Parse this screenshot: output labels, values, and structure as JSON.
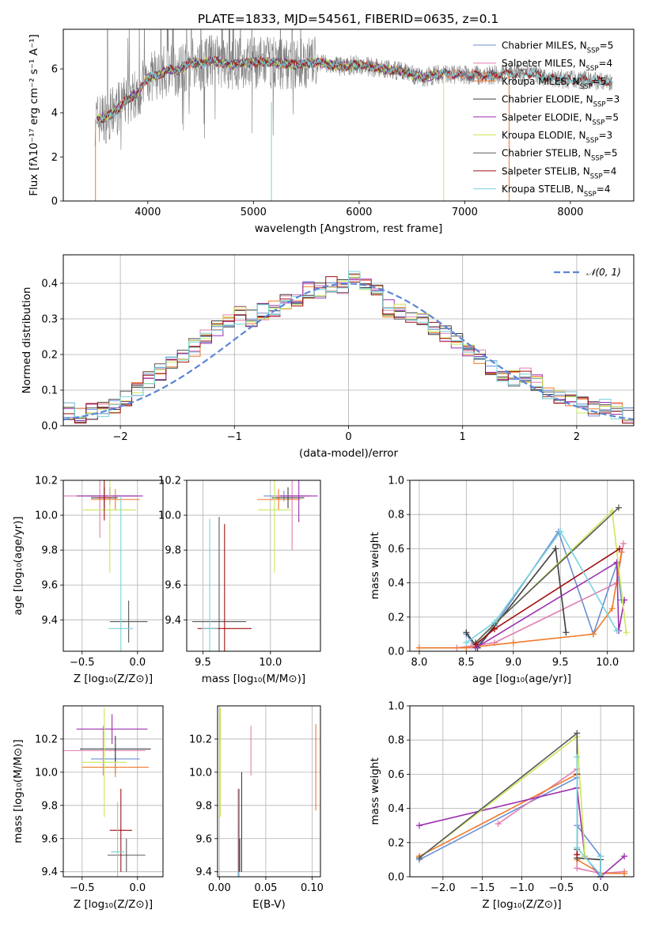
{
  "figure": {
    "title": "PLATE=1833, MJD=54561, FIBERID=0635, z=0.1"
  },
  "colors": {
    "Chabrier MILES": "#6a8fd4",
    "Salpeter MILES": "#e07fb1",
    "Kroupa MILES": "#f07a2a",
    "Chabrier ELODIE": "#3f3f3f",
    "Salpeter ELODIE": "#9b30b0",
    "Kroupa ELODIE": "#c9e85a",
    "Chabrier STELIB": "#5a5a5a",
    "Salpeter STELIB": "#a01010",
    "Kroupa STELIB": "#78d2dc",
    "data": "#808080"
  },
  "chart_data": [
    {
      "id": "spectrum",
      "type": "line",
      "xlabel": "wavelength [Angstrom, rest frame]",
      "ylabel": "Flux [fλ10⁻¹⁷ erg cm⁻² s⁻¹ A⁻¹]",
      "xlim": [
        3200,
        8600
      ],
      "ylim": [
        0,
        7.8
      ],
      "xticks": [
        "4000",
        "5000",
        "6000",
        "7000",
        "8000"
      ],
      "xtick_values": [
        4000,
        5000,
        6000,
        7000,
        8000
      ],
      "yticks": [
        "0",
        "2",
        "4",
        "6"
      ],
      "ytick_values": [
        0,
        2,
        4,
        6
      ],
      "grid": false,
      "legend_position": "top-right",
      "legend": [
        {
          "name": "Chabrier MILES, N",
          "sub": "SSP",
          "suffix": "=5",
          "series": "Chabrier MILES"
        },
        {
          "name": "Salpeter MILES, N",
          "sub": "SSP",
          "suffix": "=4",
          "series": "Salpeter MILES"
        },
        {
          "name": "Kroupa MILES, N",
          "sub": "SSP",
          "suffix": "=5",
          "series": "Kroupa MILES"
        },
        {
          "name": "Chabrier ELODIE, N",
          "sub": "SSP",
          "suffix": "=3",
          "series": "Chabrier ELODIE"
        },
        {
          "name": "Salpeter ELODIE, N",
          "sub": "SSP",
          "suffix": "=5",
          "series": "Salpeter ELODIE"
        },
        {
          "name": "Kroupa ELODIE, N",
          "sub": "SSP",
          "suffix": "=3",
          "series": "Kroupa ELODIE"
        },
        {
          "name": "Chabrier STELIB, N",
          "sub": "SSP",
          "suffix": "=5",
          "series": "Chabrier STELIB"
        },
        {
          "name": "Salpeter STELIB, N",
          "sub": "SSP",
          "suffix": "=4",
          "series": "Salpeter STELIB"
        },
        {
          "name": "Kroupa STELIB, N",
          "sub": "SSP",
          "suffix": "=4",
          "series": "Kroupa STELIB"
        }
      ],
      "continuum": {
        "x": [
          3500,
          3600,
          3700,
          3800,
          3900,
          4000,
          4100,
          4200,
          4300,
          4400,
          4500,
          4600,
          4800,
          5000,
          5200,
          5400,
          5600,
          5800,
          6000,
          6200,
          6400,
          6600,
          6800,
          7000,
          7200,
          7400,
          7600,
          7800,
          8000,
          8200,
          8400
        ],
        "y": [
          3.7,
          3.8,
          4.1,
          4.6,
          4.9,
          5.6,
          5.7,
          6.0,
          5.9,
          6.3,
          6.2,
          6.4,
          6.2,
          6.3,
          6.3,
          6.2,
          6.3,
          6.1,
          6.2,
          6.0,
          5.9,
          5.6,
          5.8,
          5.7,
          5.7,
          5.8,
          5.8,
          5.6,
          5.5,
          5.5,
          5.4
        ]
      }
    },
    {
      "id": "residuals",
      "type": "histogram",
      "xlabel": "(data-model)/error",
      "ylabel": "Normed distribution",
      "xlim": [
        -2.5,
        2.5
      ],
      "ylim": [
        0,
        0.48
      ],
      "xticks": [
        "−2",
        "−1",
        "0",
        "1",
        "2"
      ],
      "xtick_values": [
        -2,
        -1,
        0,
        1,
        2
      ],
      "yticks": [
        "0.0",
        "0.1",
        "0.2",
        "0.3",
        "0.4"
      ],
      "ytick_values": [
        0,
        0.1,
        0.2,
        0.3,
        0.4
      ],
      "grid": true,
      "legend_position": "top-right",
      "legend": [
        {
          "name": "𝒩(0, 1)",
          "style": "dashed",
          "color": "#5b86d6"
        }
      ],
      "bin_width": 0.1,
      "bins_start": -2.5,
      "histogram": [
        0.04,
        0.03,
        0.04,
        0.05,
        0.06,
        0.08,
        0.1,
        0.13,
        0.15,
        0.18,
        0.2,
        0.22,
        0.25,
        0.27,
        0.3,
        0.31,
        0.3,
        0.32,
        0.33,
        0.35,
        0.36,
        0.38,
        0.38,
        0.4,
        0.39,
        0.42,
        0.4,
        0.37,
        0.33,
        0.32,
        0.31,
        0.3,
        0.28,
        0.26,
        0.24,
        0.21,
        0.19,
        0.16,
        0.15,
        0.13,
        0.14,
        0.12,
        0.1,
        0.08,
        0.08,
        0.06,
        0.05,
        0.05,
        0.04,
        0.03
      ]
    },
    {
      "id": "age-vs-Z",
      "type": "errorbar",
      "xlabel": "Z [log₁₀(Z/Z⊙)]",
      "ylabel": "age  [log₁₀(age/yr)]",
      "xlim": [
        -0.67,
        0.23
      ],
      "ylim": [
        9.22,
        10.2
      ],
      "xticks": [
        "−0.5",
        "0.0"
      ],
      "xtick_values": [
        -0.5,
        0
      ],
      "yticks": [
        "9.4",
        "9.6",
        "9.8",
        "10.0",
        "10.2"
      ],
      "ytick_values": [
        9.4,
        9.6,
        9.8,
        10.0,
        10.2
      ],
      "grid": true,
      "points": [
        {
          "series": "Chabrier MILES",
          "x": -0.25,
          "y": 10.11,
          "xerr": 0.2,
          "yerr": 0.03
        },
        {
          "series": "Salpeter MILES",
          "x": -0.34,
          "y": 10.11,
          "xerr": 0.34,
          "yerr": 0.24
        },
        {
          "series": "Kroupa MILES",
          "x": -0.2,
          "y": 10.09,
          "xerr": 0.22,
          "yerr": 0.06
        },
        {
          "series": "Chabrier ELODIE",
          "x": -0.3,
          "y": 10.1,
          "xerr": 0.12,
          "yerr": 0.06
        },
        {
          "series": "Salpeter ELODIE",
          "x": -0.25,
          "y": 10.11,
          "xerr": 0.3,
          "yerr": 0.05
        },
        {
          "series": "Kroupa ELODIE",
          "x": -0.25,
          "y": 10.03,
          "xerr": 0.24,
          "yerr": 0.36
        },
        {
          "series": "Chabrier STELIB",
          "x": -0.08,
          "y": 9.39,
          "xerr": 0.17,
          "yerr": 0.12
        },
        {
          "series": "Salpeter STELIB",
          "x": -0.3,
          "y": 10.1,
          "xerr": 0.06,
          "yerr": 0.13
        },
        {
          "series": "Kroupa STELIB",
          "x": -0.15,
          "y": 9.35,
          "xerr": 0.11,
          "yerr": 0.76
        }
      ]
    },
    {
      "id": "age-vs-mass",
      "type": "errorbar",
      "xlabel": "mass [log₁₀(M/M⊙)]",
      "ylabel": "",
      "xlim": [
        9.38,
        10.37
      ],
      "ylim": [
        9.22,
        10.2
      ],
      "xticks": [
        "9.5",
        "10.0"
      ],
      "xtick_values": [
        9.5,
        10.0
      ],
      "yticks": [
        "9.4",
        "9.6",
        "9.8",
        "10.0",
        "10.2"
      ],
      "ytick_values": [
        9.4,
        9.6,
        9.8,
        10.0,
        10.2
      ],
      "grid": true,
      "points": [
        {
          "series": "Chabrier MILES",
          "x": 10.1,
          "y": 10.11,
          "xerr": 0.15,
          "yerr": 0.03
        },
        {
          "series": "Salpeter MILES",
          "x": 10.16,
          "y": 10.11,
          "xerr": 0.13,
          "yerr": 0.31
        },
        {
          "series": "Kroupa MILES",
          "x": 10.06,
          "y": 10.09,
          "xerr": 0.16,
          "yerr": 0.06
        },
        {
          "series": "Chabrier ELODIE",
          "x": 10.13,
          "y": 10.1,
          "xerr": 0.12,
          "yerr": 0.06
        },
        {
          "series": "Salpeter ELODIE",
          "x": 10.21,
          "y": 10.11,
          "xerr": 0.14,
          "yerr": 0.15
        },
        {
          "series": "Kroupa ELODIE",
          "x": 10.03,
          "y": 10.03,
          "xerr": 0.12,
          "yerr": 0.36
        },
        {
          "series": "Chabrier STELIB",
          "x": 9.62,
          "y": 9.39,
          "xerr": 0.2,
          "yerr": 0.6
        },
        {
          "series": "Salpeter STELIB",
          "x": 9.66,
          "y": 9.35,
          "xerr": 0.2,
          "yerr": 0.6
        },
        {
          "series": "Kroupa STELIB",
          "x": 9.55,
          "y": 9.35,
          "xerr": 0.06,
          "yerr": 0.63
        }
      ]
    },
    {
      "id": "weight-vs-age",
      "type": "line",
      "xlabel": "age  [log₁₀(age/yr)]",
      "ylabel": "mass weight",
      "xlim": [
        7.9,
        10.28
      ],
      "ylim": [
        0,
        1.0
      ],
      "xticks": [
        "8.0",
        "8.5",
        "9.0",
        "9.5",
        "10.0"
      ],
      "xtick_values": [
        8.0,
        8.5,
        9.0,
        9.5,
        10.0
      ],
      "yticks": [
        "0.0",
        "0.2",
        "0.4",
        "0.6",
        "0.8",
        "1.0"
      ],
      "ytick_values": [
        0,
        0.2,
        0.4,
        0.6,
        0.8,
        1.0
      ],
      "grid": true,
      "series": [
        {
          "name": "Chabrier MILES",
          "x": [
            8.5,
            8.6,
            8.8,
            9.48,
            9.85,
            10.1,
            10.15
          ],
          "y": [
            0.1,
            0.02,
            0.15,
            0.7,
            0.1,
            0.51,
            0.3
          ]
        },
        {
          "name": "Salpeter MILES",
          "x": [
            8.4,
            8.55,
            8.8,
            10.1,
            10.17
          ],
          "y": [
            0.02,
            0.03,
            0.05,
            0.4,
            0.63
          ]
        },
        {
          "name": "Kroupa MILES",
          "x": [
            8.0,
            8.5,
            9.0,
            9.85,
            10.05,
            10.15
          ],
          "y": [
            0.02,
            0.02,
            0.05,
            0.1,
            0.25,
            0.58
          ]
        },
        {
          "name": "Chabrier ELODIE",
          "x": [
            8.5,
            8.62,
            9.45,
            9.56
          ],
          "y": [
            0.11,
            0.02,
            0.6,
            0.11
          ]
        },
        {
          "name": "Salpeter ELODIE",
          "x": [
            8.6,
            10.1,
            10.12,
            10.18
          ],
          "y": [
            0.02,
            0.52,
            0.12,
            0.3
          ]
        },
        {
          "name": "Kroupa ELODIE",
          "x": [
            8.6,
            10.05,
            10.2
          ],
          "y": [
            0.05,
            0.82,
            0.11
          ]
        },
        {
          "name": "Chabrier STELIB",
          "x": [
            8.6,
            8.8,
            10.12
          ],
          "y": [
            0.05,
            0.16,
            0.84
          ]
        },
        {
          "name": "Salpeter STELIB",
          "x": [
            8.6,
            8.8,
            10.13
          ],
          "y": [
            0.04,
            0.13,
            0.6
          ]
        },
        {
          "name": "Kroupa STELIB",
          "x": [
            8.5,
            8.8,
            9.5,
            10.1
          ],
          "y": [
            0.05,
            0.17,
            0.7,
            0.12
          ]
        }
      ]
    },
    {
      "id": "mass-vs-Z",
      "type": "errorbar",
      "xlabel": "Z [log₁₀(Z/Z⊙)]",
      "ylabel": "mass [log₁₀(M/M⊙)]",
      "xlim": [
        -0.67,
        0.23
      ],
      "ylim": [
        9.37,
        10.4
      ],
      "xticks": [
        "−0.5",
        "0.0"
      ],
      "xtick_values": [
        -0.5,
        0
      ],
      "yticks": [
        "9.4",
        "9.6",
        "9.8",
        "10.0",
        "10.2"
      ],
      "ytick_values": [
        9.4,
        9.6,
        9.8,
        10.0,
        10.2
      ],
      "grid": true,
      "points": [
        {
          "series": "Chabrier MILES",
          "x": -0.2,
          "y": 10.08,
          "xerr": 0.22,
          "yerr": 0.09
        },
        {
          "series": "Salpeter MILES",
          "x": -0.31,
          "y": 10.13,
          "xerr": 0.38,
          "yerr": 0.15
        },
        {
          "series": "Kroupa MILES",
          "x": -0.2,
          "y": 10.03,
          "xerr": 0.3,
          "yerr": 0.06
        },
        {
          "series": "Chabrier ELODIE",
          "x": -0.2,
          "y": 10.14,
          "xerr": 0.32,
          "yerr": 0.08
        },
        {
          "series": "Salpeter ELODIE",
          "x": -0.23,
          "y": 10.26,
          "xerr": 0.32,
          "yerr": 0.09
        },
        {
          "series": "Kroupa ELODIE",
          "x": -0.3,
          "y": 10.06,
          "xerr": 0.2,
          "yerr": 0.33
        },
        {
          "series": "Chabrier STELIB",
          "x": -0.1,
          "y": 9.5,
          "xerr": 0.17,
          "yerr": 0.1
        },
        {
          "series": "Salpeter STELIB",
          "x": -0.15,
          "y": 9.65,
          "xerr": 0.1,
          "yerr": 0.25
        },
        {
          "series": "Kroupa STELIB",
          "x": -0.18,
          "y": 9.52,
          "xerr": 0.06,
          "yerr": 0.3
        }
      ]
    },
    {
      "id": "mass-vs-ebv",
      "type": "errorbar",
      "xlabel": "E(B-V)",
      "ylabel": "",
      "xlim": [
        -0.002,
        0.109
      ],
      "ylim": [
        9.37,
        10.4
      ],
      "xticks": [
        "0.00",
        "0.05",
        "0.10"
      ],
      "xtick_values": [
        0,
        0.05,
        0.1
      ],
      "yticks": [
        "9.4",
        "9.6",
        "9.8",
        "10.0",
        "10.2"
      ],
      "ytick_values": [
        9.4,
        9.6,
        9.8,
        10.0,
        10.2
      ],
      "grid": true,
      "points": [
        {
          "series": "Chabrier MILES",
          "x": 0.021,
          "y": 9.52,
          "xerr": 0,
          "yerr": 0.15
        },
        {
          "series": "Salpeter MILES",
          "x": 0.034,
          "y": 10.13,
          "xerr": 0,
          "yerr": 0.15
        },
        {
          "series": "Kroupa MILES",
          "x": 0.104,
          "y": 10.03,
          "xerr": 0,
          "yerr": 0.26
        },
        {
          "series": "Chabrier ELODIE",
          "x": 0.024,
          "y": 9.7,
          "xerr": 0,
          "yerr": 0.3
        },
        {
          "series": "Salpeter ELODIE",
          "x": 0.001,
          "y": 10.26,
          "xerr": 0,
          "yerr": 0.09
        },
        {
          "series": "Kroupa ELODIE",
          "x": 0.001,
          "y": 10.06,
          "xerr": 0,
          "yerr": 0.33
        },
        {
          "series": "Chabrier STELIB",
          "x": 0.022,
          "y": 9.5,
          "xerr": 0,
          "yerr": 0.1
        },
        {
          "series": "Salpeter STELIB",
          "x": 0.021,
          "y": 9.65,
          "xerr": 0,
          "yerr": 0.25
        },
        {
          "series": "Kroupa STELIB",
          "x": 0.02,
          "y": 9.55,
          "xerr": 0,
          "yerr": 0.35
        }
      ]
    },
    {
      "id": "weight-vs-Z",
      "type": "line",
      "xlabel": "Z [log₁₀(Z/Z⊙)]",
      "ylabel": "mass weight",
      "xlim": [
        -2.42,
        0.42
      ],
      "ylim": [
        0,
        1.0
      ],
      "xticks": [
        "−2.0",
        "−1.5",
        "−1.0",
        "−0.5",
        "0.0"
      ],
      "xtick_values": [
        -2.0,
        -1.5,
        -1.0,
        -0.5,
        0
      ],
      "yticks": [
        "0.0",
        "0.2",
        "0.4",
        "0.6",
        "0.8",
        "1.0"
      ],
      "ytick_values": [
        0,
        0.2,
        0.4,
        0.6,
        0.8,
        1.0
      ],
      "grid": true,
      "series": [
        {
          "name": "Chabrier MILES",
          "x": [
            -2.3,
            -0.3,
            -0.3,
            0.0,
            0.0
          ],
          "y": [
            0.1,
            0.58,
            0.3,
            0.12,
            0.0
          ]
        },
        {
          "name": "Salpeter MILES",
          "x": [
            -1.3,
            -0.3,
            -0.3,
            0.0,
            0.3
          ],
          "y": [
            0.31,
            0.63,
            0.05,
            0.02,
            0.03
          ]
        },
        {
          "name": "Kroupa MILES",
          "x": [
            -2.3,
            -0.3,
            -0.3,
            0.0,
            0.3
          ],
          "y": [
            0.12,
            0.6,
            0.1,
            0.02,
            0.02
          ]
        },
        {
          "name": "Chabrier ELODIE",
          "x": [
            -0.3,
            0.0,
            0.0
          ],
          "y": [
            0.11,
            0.1,
            0.0
          ]
        },
        {
          "name": "Salpeter ELODIE",
          "x": [
            -2.3,
            -0.3,
            -0.2,
            0.0,
            0.3
          ],
          "y": [
            0.3,
            0.52,
            0.12,
            0.0,
            0.12
          ]
        },
        {
          "name": "Kroupa ELODIE",
          "x": [
            -2.3,
            -0.3,
            -0.2
          ],
          "y": [
            0.11,
            0.82,
            0.12
          ]
        },
        {
          "name": "Chabrier STELIB",
          "x": [
            -2.3,
            -0.3,
            -0.3
          ],
          "y": [
            0.11,
            0.84,
            0.16
          ]
        },
        {
          "name": "Salpeter STELIB",
          "x": [
            -0.3,
            -0.3
          ],
          "y": [
            0.6,
            0.13
          ]
        },
        {
          "name": "Kroupa STELIB",
          "x": [
            -0.3,
            -0.3,
            0.0,
            0.0
          ],
          "y": [
            0.7,
            0.17,
            0.01,
            0.12
          ]
        }
      ]
    }
  ]
}
